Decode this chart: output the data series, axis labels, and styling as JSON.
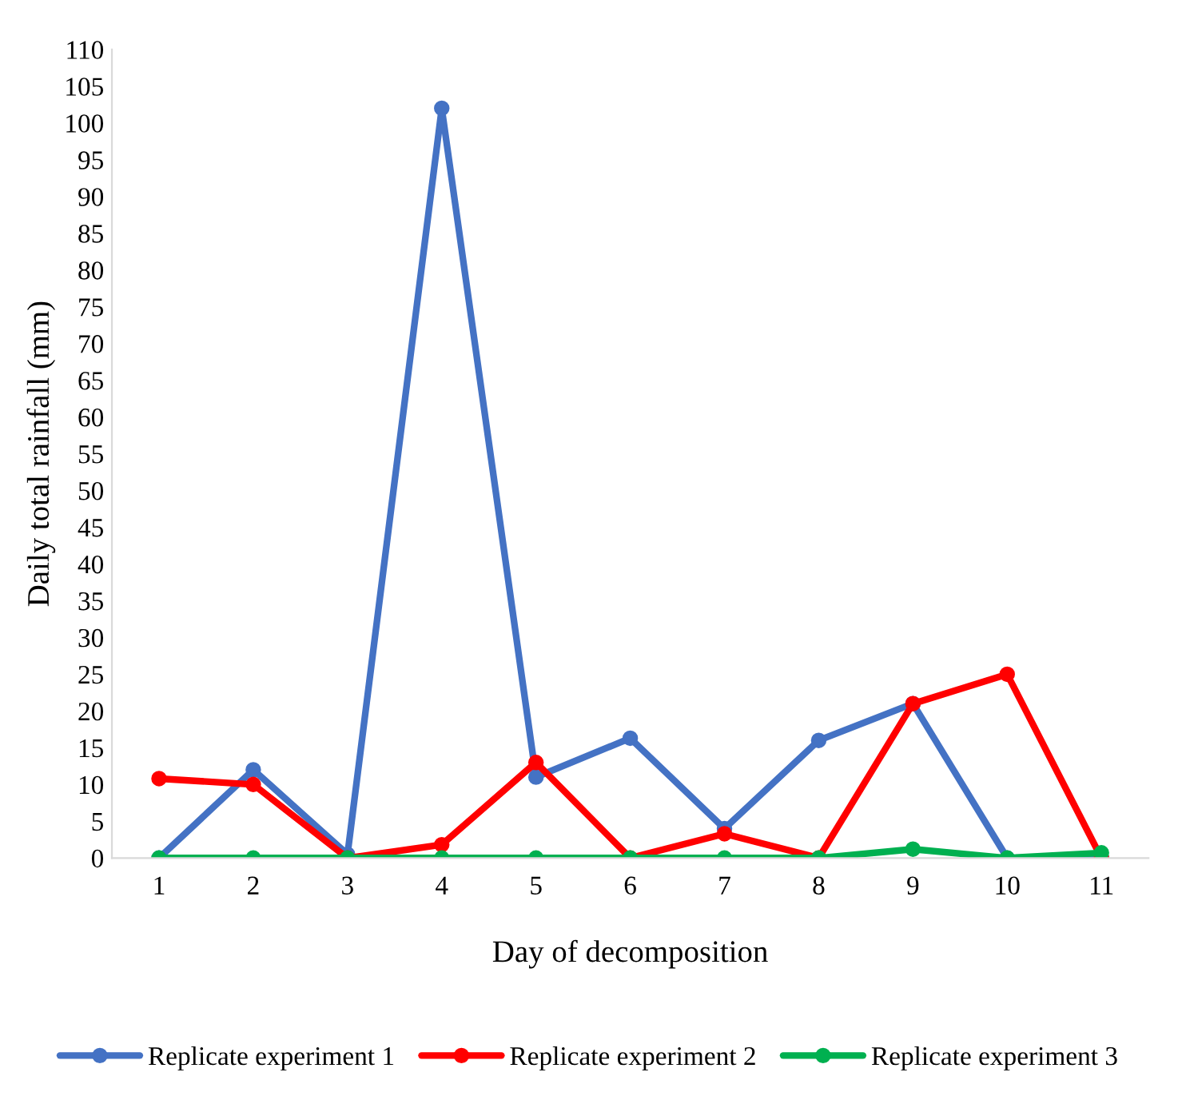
{
  "chart_data": {
    "type": "line",
    "xlabel": "Day of decomposition",
    "ylabel": "Daily total rainfall (mm)",
    "categories": [
      "1",
      "2",
      "3",
      "4",
      "5",
      "6",
      "7",
      "8",
      "9",
      "10",
      "11"
    ],
    "series": [
      {
        "name": "Replicate experiment 1",
        "color": "#4472c4",
        "values": [
          0,
          12,
          0.5,
          102,
          11,
          16.3,
          4,
          16,
          21,
          0,
          0
        ]
      },
      {
        "name": "Replicate experiment 2",
        "color": "#ff0000",
        "values": [
          10.8,
          10,
          0,
          1.8,
          13,
          0,
          3.3,
          0,
          21,
          25,
          0
        ]
      },
      {
        "name": "Replicate experiment 3",
        "color": "#00b050",
        "values": [
          0,
          0,
          0,
          0,
          0,
          0,
          0,
          0,
          1.2,
          0,
          0.7
        ]
      }
    ],
    "ylim": [
      0,
      110
    ],
    "yticks": [
      0,
      5,
      10,
      15,
      20,
      25,
      30,
      35,
      40,
      45,
      50,
      55,
      60,
      65,
      70,
      75,
      80,
      85,
      90,
      95,
      100,
      105,
      110
    ],
    "grid": false,
    "legend": "bottom",
    "marker": "circle",
    "line_style": "solid"
  }
}
